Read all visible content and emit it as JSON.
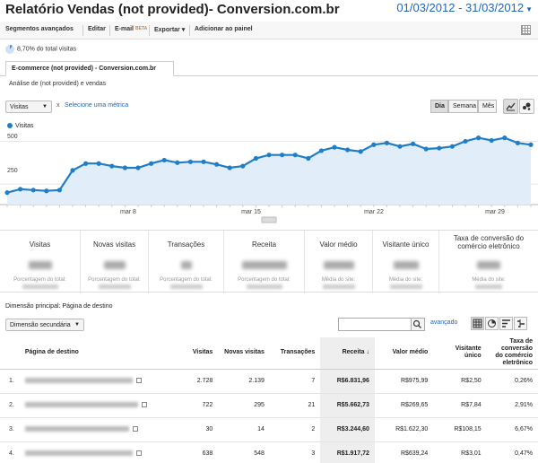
{
  "header": {
    "title": "Relatório Vendas (not provided)- Conversion.com.br",
    "date_range": "01/03/2012 - 31/03/2012"
  },
  "toolbar": {
    "segments": "Segmentos avançados",
    "edit": "Editar",
    "email": "E-mail",
    "beta": "BETA",
    "export": "Exportar",
    "add_to_panel": "Adicionar ao painel"
  },
  "segment": {
    "label": "8,70% do total visitas"
  },
  "tabs": {
    "main": "E-commerce (not provided) - Conversion.com.br",
    "sub": "Análise de (not provided) e vendas"
  },
  "chart_controls": {
    "metric": "Visitas",
    "remove": "x",
    "add_metric": "Selecione uma métrica",
    "periods": [
      "Dia",
      "Semana",
      "Mês"
    ],
    "active_period": "Dia"
  },
  "chart_data": {
    "type": "area",
    "series": [
      {
        "name": "Visitas",
        "values": [
          200,
          220,
          215,
          210,
          215,
          330,
          370,
          370,
          355,
          345,
          345,
          370,
          390,
          375,
          380,
          380,
          365,
          345,
          355,
          400,
          420,
          420,
          420,
          400,
          445,
          465,
          450,
          440,
          480,
          490,
          470,
          485,
          455,
          460,
          470,
          500,
          520,
          505,
          520,
          490,
          480
        ]
      }
    ],
    "x_tick_labels": [
      "mar 8",
      "mar 15",
      "mar 22",
      "mar 29"
    ],
    "y_tick_labels": [
      "500",
      "250"
    ],
    "ylim": [
      130,
      560
    ],
    "color": "#1f7ec7",
    "fill": "#e1eef9",
    "grid": true,
    "legend": "top-left"
  },
  "scorecard": [
    {
      "title": "Visitas",
      "caption": "Porcentagem do total:"
    },
    {
      "title": "Novas visitas",
      "caption": "Porcentagem do total:"
    },
    {
      "title": "Transações",
      "caption": "Porcentagem do total:"
    },
    {
      "title": "Receita",
      "caption": "Porcentagem do total:"
    },
    {
      "title": "Valor médio",
      "caption": "Média do site:"
    },
    {
      "title": "Visitante único",
      "caption": "Média do site:"
    },
    {
      "title": "Taxa de conversão do comércio eletrônico",
      "caption": "Média do site:"
    }
  ],
  "dimension": {
    "primary_label": "Dimensão principal:",
    "primary_value": "Página de destino",
    "secondary": "Dimensão secundária",
    "advanced": "avançado"
  },
  "table": {
    "headers": [
      "Página de destino",
      "Visitas",
      "Novas visitas",
      "Transações",
      "Receita",
      "Valor médio",
      "Visitante único",
      "Taxa de conversão do comércio eletrônico"
    ],
    "sort_indicator": "↓",
    "rows": [
      {
        "n": "1.",
        "visitas": "2.728",
        "novas": "2.139",
        "trans": "7",
        "receita": "R$6.831,96",
        "valor": "R$975,99",
        "unico": "R$2,50",
        "taxa": "0,26%"
      },
      {
        "n": "2.",
        "visitas": "722",
        "novas": "295",
        "trans": "21",
        "receita": "R$5.662,73",
        "valor": "R$269,65",
        "unico": "R$7,84",
        "taxa": "2,91%"
      },
      {
        "n": "3.",
        "visitas": "30",
        "novas": "14",
        "trans": "2",
        "receita": "R$3.244,60",
        "valor": "R$1.622,30",
        "unico": "R$108,15",
        "taxa": "6,67%"
      },
      {
        "n": "4.",
        "visitas": "638",
        "novas": "548",
        "trans": "3",
        "receita": "R$1.917,72",
        "valor": "R$639,24",
        "unico": "R$3,01",
        "taxa": "0,47%"
      }
    ]
  }
}
